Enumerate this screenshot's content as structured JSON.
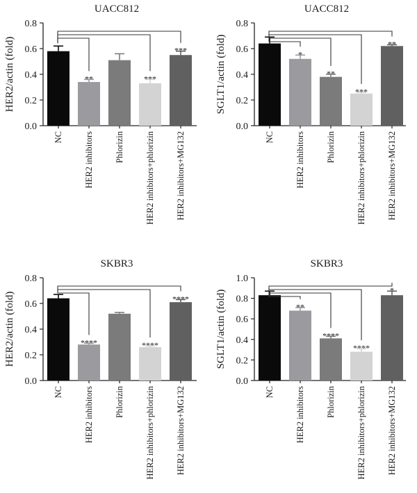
{
  "figure": {
    "category_labels": [
      "NC",
      "HER2 inhibitors",
      "Phlorizin",
      "HER2 inhibitors+phlorizin",
      "HER2 inhibitors+MG132"
    ],
    "bar_colors": [
      "#0a0a0a",
      "#9a9a9f",
      "#7b7b7b",
      "#d3d3d3",
      "#606060"
    ]
  },
  "chart_data": [
    {
      "type": "bar",
      "title": "UACC812",
      "ylabel": "HER2/actin (fold)",
      "xlabel": "",
      "categories": [
        "NC",
        "HER2 inhibitors",
        "Phlorizin",
        "HER2 inhibitors+phlorizin",
        "HER2 inhibitors+MG132"
      ],
      "values": [
        0.58,
        0.34,
        0.51,
        0.33,
        0.55
      ],
      "errors": [
        0.04,
        0.02,
        0.05,
        0.03,
        0.03
      ],
      "significance": [
        "",
        "**",
        "",
        "***",
        "***"
      ],
      "ylim": [
        0,
        0.8
      ],
      "yticks": [
        "0.0",
        "0.2",
        "0.4",
        "0.6",
        "0.8"
      ],
      "brackets_to": [
        1,
        3,
        4
      ]
    },
    {
      "type": "bar",
      "title": "UACC812",
      "ylabel": "SGLT1/actin (fold)",
      "xlabel": "",
      "categories": [
        "NC",
        "HER2 inhibitors",
        "Phlorizin",
        "HER2 inhibitors+phlorizin",
        "HER2 inhibitors+MG132"
      ],
      "values": [
        0.64,
        0.52,
        0.38,
        0.25,
        0.62
      ],
      "errors": [
        0.05,
        0.03,
        0.02,
        0.01,
        0.01
      ],
      "significance": [
        "",
        "*",
        "**",
        "***",
        "**"
      ],
      "ylim": [
        0,
        0.8
      ],
      "yticks": [
        "0.0",
        "0.2",
        "0.4",
        "0.6",
        "0.8"
      ],
      "brackets_to": [
        1,
        2,
        3,
        4
      ]
    },
    {
      "type": "bar",
      "title": "SKBR3",
      "ylabel": "HER2/actin (fold)",
      "xlabel": "",
      "categories": [
        "NC",
        "HER2 inhibitors",
        "Phlorizin",
        "HER2 inhibitors+phlorizin",
        "HER2 inhibitors+MG132"
      ],
      "values": [
        0.64,
        0.28,
        0.52,
        0.26,
        0.61
      ],
      "errors": [
        0.03,
        0.01,
        0.01,
        0.01,
        0.02
      ],
      "significance": [
        "",
        "****",
        "",
        "****",
        "****"
      ],
      "ylim": [
        0,
        0.8
      ],
      "yticks": [
        "0.0",
        "0.2",
        "0.4",
        "0.6",
        "0.8"
      ],
      "brackets_to": [
        1,
        3,
        4
      ]
    },
    {
      "type": "bar",
      "title": "SKBR3",
      "ylabel": "SGLT1/actin (fold)",
      "xlabel": "",
      "categories": [
        "NC",
        "HER2 inhibitors",
        "Phlorizin",
        "HER2 inhibitors+phlorizin",
        "HER2 inhibitors+MG132"
      ],
      "values": [
        0.83,
        0.68,
        0.41,
        0.28,
        0.83
      ],
      "errors": [
        0.04,
        0.03,
        0.02,
        0.03,
        0.04
      ],
      "significance": [
        "",
        "**",
        "****",
        "****",
        "*"
      ],
      "ylim": [
        0,
        1.0
      ],
      "yticks": [
        "0.0",
        "0.2",
        "0.4",
        "0.6",
        "0.8",
        "1.0"
      ],
      "brackets_to": [
        1,
        2,
        3,
        4
      ]
    }
  ]
}
